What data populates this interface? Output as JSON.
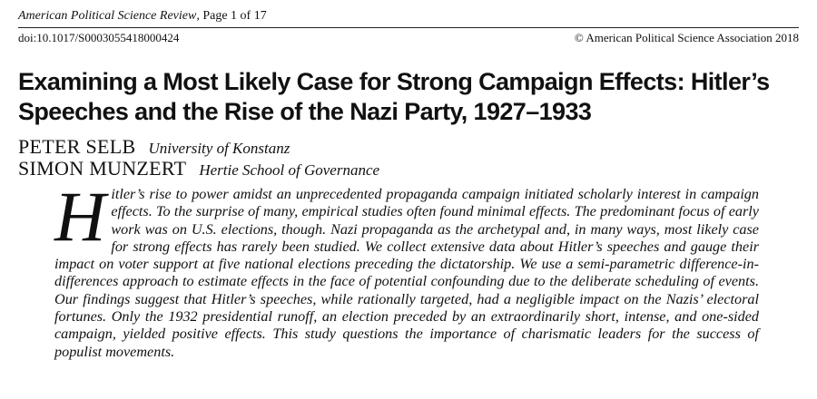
{
  "header": {
    "journal": "American Political Science Review",
    "page_info": ", Page 1 of 17",
    "doi_prefix": "doi:",
    "doi": "10.1017/S0003055418000424",
    "copyright": "© American Political Science Association 2018"
  },
  "article": {
    "title": "Examining a Most Likely Case for Strong Campaign Effects: Hitler’s Speeches and the Rise of the Nazi Party, 1927–1933",
    "authors": [
      {
        "name": "PETER SELB",
        "affiliation": "University of Konstanz"
      },
      {
        "name": "SIMON MUNZERT",
        "affiliation": "Hertie School of Governance"
      }
    ],
    "abstract_dropcap": "H",
    "abstract_text": "itler’s rise to power amidst an unprecedented propaganda campaign initiated scholarly interest in campaign effects. To the surprise of many, empirical studies often found minimal effects. The predominant focus of early work was on U.S. elections, though. Nazi propaganda as the archetypal and, in many ways, most likely case for strong effects has rarely been studied. We collect extensive data about Hitler’s speeches and gauge their impact on voter support at five national elections preceding the dictatorship. We use a semi-parametric difference-in-differences approach to estimate effects in the face of potential confounding due to the deliberate scheduling of events. Our findings suggest that Hitler’s speeches, while rationally targeted, had a negligible impact on the Nazis’ electoral fortunes. Only the 1932 presidential runoff, an election preceded by an extraordinarily short, intense, and one-sided campaign, yielded positive effects. This study questions the importance of charismatic leaders for the success of populist movements."
  }
}
